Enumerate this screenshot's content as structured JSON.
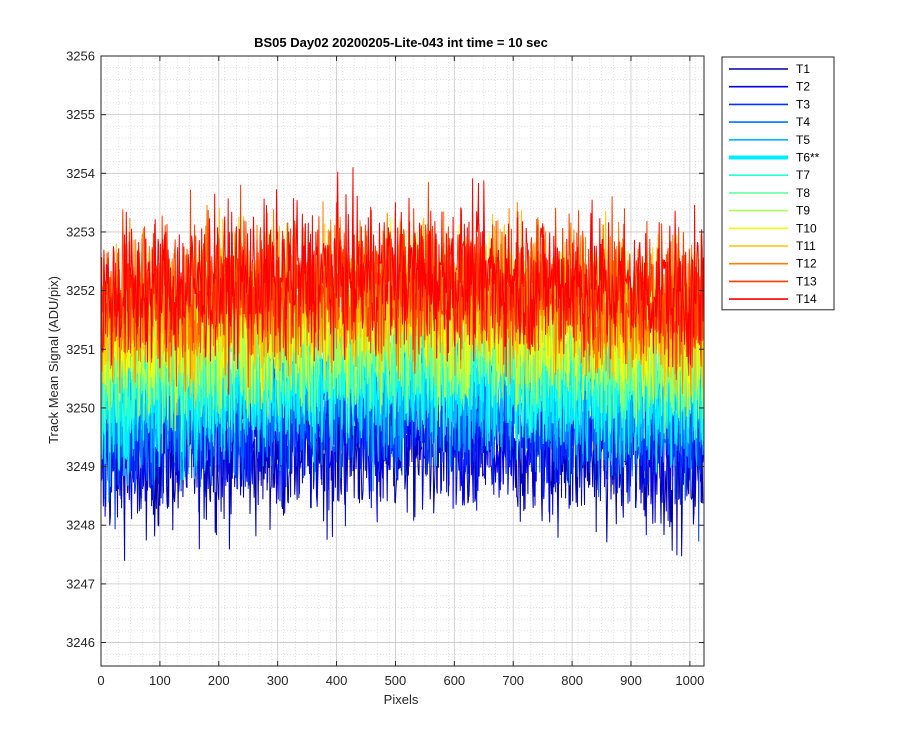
{
  "chart_data": {
    "type": "line",
    "title": "BS05 Day02 20200205-Lite-043 int time = 10 sec",
    "xlabel": "Pixels",
    "ylabel": "Track Mean Signal (ADU/pix)",
    "xlim": [
      0,
      1024
    ],
    "ylim": [
      3245.6,
      3256
    ],
    "xticks": [
      0,
      100,
      200,
      300,
      400,
      500,
      600,
      700,
      800,
      900,
      1000
    ],
    "yticks": [
      3246,
      3247,
      3248,
      3249,
      3250,
      3251,
      3252,
      3253,
      3254,
      3255,
      3256
    ],
    "grid": true,
    "minor_grid": true,
    "legend_position": "outside-right",
    "noise_note_hidden": false,
    "n_points": 1024,
    "series": [
      {
        "name": "T1",
        "color": "#0000AA",
        "mean": 3249.0,
        "spread": 0.9,
        "highlight": false
      },
      {
        "name": "T2",
        "color": "#0000EE",
        "mean": 3249.3,
        "spread": 0.9,
        "highlight": false
      },
      {
        "name": "T3",
        "color": "#0033FF",
        "mean": 3249.6,
        "spread": 0.9,
        "highlight": false
      },
      {
        "name": "T4",
        "color": "#0077FF",
        "mean": 3249.9,
        "spread": 0.9,
        "highlight": false
      },
      {
        "name": "T5",
        "color": "#00BBFF",
        "mean": 3250.1,
        "spread": 0.9,
        "highlight": false
      },
      {
        "name": "T6**",
        "color": "#00EEFF",
        "mean": 3250.3,
        "spread": 0.9,
        "highlight": true
      },
      {
        "name": "T7",
        "color": "#22FFDD",
        "mean": 3250.5,
        "spread": 0.9,
        "highlight": false
      },
      {
        "name": "T8",
        "color": "#66FF99",
        "mean": 3250.8,
        "spread": 0.9,
        "highlight": false
      },
      {
        "name": "T9",
        "color": "#AAFF55",
        "mean": 3251.0,
        "spread": 0.9,
        "highlight": false
      },
      {
        "name": "T10",
        "color": "#EEFF11",
        "mean": 3251.2,
        "spread": 0.9,
        "highlight": false
      },
      {
        "name": "T11",
        "color": "#FFC400",
        "mean": 3251.5,
        "spread": 0.9,
        "highlight": false
      },
      {
        "name": "T12",
        "color": "#FF8000",
        "mean": 3251.7,
        "spread": 0.9,
        "highlight": false
      },
      {
        "name": "T13",
        "color": "#FF3D00",
        "mean": 3251.8,
        "spread": 0.9,
        "highlight": false
      },
      {
        "name": "T14",
        "color": "#FF0000",
        "mean": 3251.9,
        "spread": 0.9,
        "highlight": false
      }
    ]
  }
}
